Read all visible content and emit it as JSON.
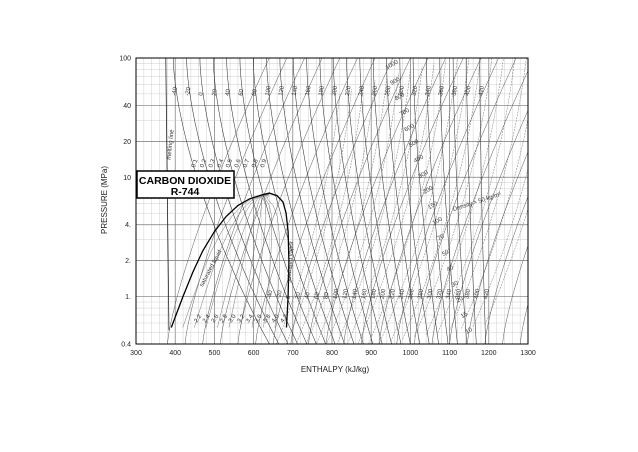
{
  "chart_data": {
    "type": "line",
    "title": "CARBON DIOXIDE",
    "subtitle": "R-744",
    "xlabel": "ENTHALPY (kJ/kg)",
    "ylabel": "PRESSURE (MPa)",
    "xlim": [
      300,
      1300
    ],
    "ylim": [
      0.4,
      100
    ],
    "y_scale": "log",
    "grid": true,
    "x_ticks": [
      300,
      400,
      500,
      600,
      700,
      800,
      900,
      1000,
      1100,
      1200,
      1300
    ],
    "y_ticks": [
      {
        "value": 0.4,
        "label": "0.4"
      },
      {
        "value": 1,
        "label": "1."
      },
      {
        "value": 2,
        "label": "2."
      },
      {
        "value": 4,
        "label": "4."
      },
      {
        "value": 10,
        "label": "10"
      },
      {
        "value": 20,
        "label": "20"
      },
      {
        "value": 40,
        "label": "40"
      },
      {
        "value": 100,
        "label": "100"
      }
    ],
    "isotherm_labels_top": [
      "-40",
      "-20",
      "0",
      "20",
      "40",
      "60",
      "80",
      "100",
      "120",
      "140",
      "160",
      "180",
      "200",
      "220",
      "240",
      "260",
      "280",
      "300",
      "320",
      "340",
      "360",
      "380",
      "400",
      "420"
    ],
    "isotherm_labels_bottom": [
      "-40",
      "-20",
      "0",
      "20",
      "40",
      "60",
      "80",
      "100",
      "120",
      "140",
      "160",
      "180",
      "200",
      "220",
      "240",
      "260",
      "280",
      "300",
      "320",
      "340",
      "360",
      "380",
      "400",
      "420"
    ],
    "density_labels": [
      "1000",
      "900",
      "800",
      "700",
      "600",
      "500",
      "400",
      "300",
      "200",
      "150",
      "100",
      "70",
      "50",
      "40",
      "30",
      "20",
      "15",
      "10",
      "7",
      "5"
    ],
    "density_unit_label": "Density = 50 kg/m³",
    "saturation_labels": [
      "melting line",
      "saturated liquid",
      "saturated vapor"
    ],
    "quality_labels": [
      "0.1",
      "0.2",
      "0.3",
      "0.4",
      "0.5",
      "0.6",
      "0.7",
      "0.8",
      "0.9"
    ],
    "entropy_labels": [
      "2.2",
      "2.4",
      "2.6",
      "2.8",
      "3.0",
      "3.2",
      "3.4",
      "3.6",
      "3.8",
      "4.0",
      "4.2"
    ],
    "saturation_dome": {
      "liquid": [
        {
          "h": 390,
          "p": 0.55
        },
        {
          "h": 420,
          "p": 1.0
        },
        {
          "h": 445,
          "p": 1.6
        },
        {
          "h": 470,
          "p": 2.4
        },
        {
          "h": 500,
          "p": 3.5
        },
        {
          "h": 530,
          "p": 4.7
        },
        {
          "h": 560,
          "p": 5.8
        },
        {
          "h": 590,
          "p": 6.6
        },
        {
          "h": 620,
          "p": 7.1
        },
        {
          "h": 640,
          "p": 7.37
        }
      ],
      "vapor": [
        {
          "h": 640,
          "p": 7.37
        },
        {
          "h": 660,
          "p": 7.0
        },
        {
          "h": 675,
          "p": 6.2
        },
        {
          "h": 683,
          "p": 5.0
        },
        {
          "h": 688,
          "p": 3.5
        },
        {
          "h": 690,
          "p": 2.0
        },
        {
          "h": 688,
          "p": 1.0
        },
        {
          "h": 684,
          "p": 0.55
        }
      ]
    }
  }
}
